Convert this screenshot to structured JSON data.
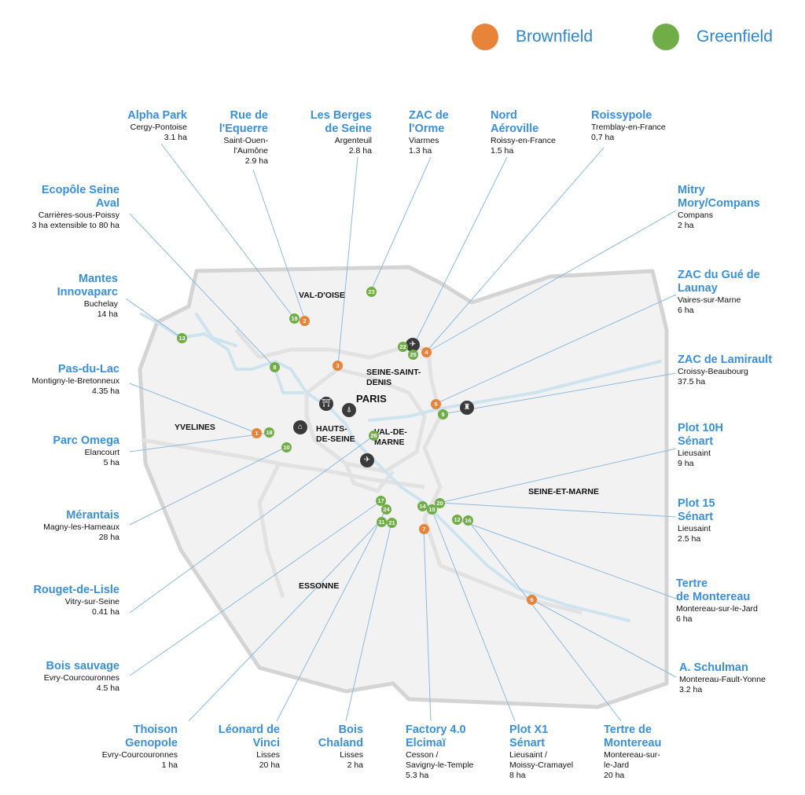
{
  "legend": [
    {
      "label": "Brownfield",
      "color": "#e8833a"
    },
    {
      "label": "Greenfield",
      "color": "#70ad47"
    }
  ],
  "colors": {
    "brownfield": "#e8833a",
    "greenfield": "#70ad47",
    "label": "#3b8fd6",
    "leader": "#7fb2dc",
    "region_fill": "#f0f0f0",
    "region_outline": "#d3d3d3",
    "river": "#c9e3ee"
  },
  "regions": [
    {
      "id": "val-doise",
      "text": "VAL-D'OISE"
    },
    {
      "id": "seine-saint-denis",
      "text": "SEINE-SAINT-\nDENIS"
    },
    {
      "id": "paris",
      "text": "PARIS"
    },
    {
      "id": "yvelines",
      "text": "YVELINES"
    },
    {
      "id": "hauts-de-seine",
      "text": "HAUTS-\nDE-SEINE"
    },
    {
      "id": "val-de-marne",
      "text": "VAL-DE-\nMARNE"
    },
    {
      "id": "seine-et-marne",
      "text": "SEINE-ET-MARNE"
    },
    {
      "id": "essonne",
      "text": "ESSONNE"
    }
  ],
  "markers": [
    {
      "number": "1",
      "type": "brownfield"
    },
    {
      "number": "2",
      "type": "brownfield"
    },
    {
      "number": "3",
      "type": "brownfield"
    },
    {
      "number": "4",
      "type": "brownfield"
    },
    {
      "number": "5",
      "type": "brownfield"
    },
    {
      "number": "6",
      "type": "brownfield"
    },
    {
      "number": "7",
      "type": "brownfield"
    },
    {
      "number": "8",
      "type": "greenfield"
    },
    {
      "number": "9",
      "type": "greenfield"
    },
    {
      "number": "10",
      "type": "greenfield"
    },
    {
      "number": "11",
      "type": "greenfield"
    },
    {
      "number": "12",
      "type": "greenfield"
    },
    {
      "number": "13",
      "type": "greenfield"
    },
    {
      "number": "14",
      "type": "greenfield"
    },
    {
      "number": "15",
      "type": "greenfield"
    },
    {
      "number": "16",
      "type": "greenfield"
    },
    {
      "number": "17",
      "type": "greenfield"
    },
    {
      "number": "18",
      "type": "greenfield"
    },
    {
      "number": "19",
      "type": "greenfield"
    },
    {
      "number": "20",
      "type": "greenfield"
    },
    {
      "number": "21",
      "type": "greenfield"
    },
    {
      "number": "22",
      "type": "greenfield"
    },
    {
      "number": "23",
      "type": "greenfield"
    },
    {
      "number": "24",
      "type": "greenfield"
    },
    {
      "number": "25",
      "type": "greenfield"
    },
    {
      "number": "26",
      "type": "greenfield"
    }
  ],
  "landmarks": [
    {
      "icon": "arc-de-triomphe-icon",
      "glyph": "⛩"
    },
    {
      "icon": "eiffel-tower-icon",
      "glyph": "⍋"
    },
    {
      "icon": "palace-icon",
      "glyph": "⌂"
    },
    {
      "icon": "airport-north-icon",
      "glyph": "✈"
    },
    {
      "icon": "airport-south-icon",
      "glyph": "✈"
    },
    {
      "icon": "castle-icon",
      "glyph": "♜"
    }
  ],
  "sites": [
    {
      "id": "alpha-park",
      "name": "Alpha Park",
      "location": "Cergy-Pontoise",
      "area": "3.1 ha"
    },
    {
      "id": "rue-equerre",
      "name": "Rue de\nl'Equerre",
      "location": "Saint-Ouen-\nl'Aumône",
      "area": "2.9 ha"
    },
    {
      "id": "berges-seine",
      "name": "Les Berges\nde Seine",
      "location": "Argenteuil",
      "area": "2.8 ha"
    },
    {
      "id": "zac-orme",
      "name": "ZAC de\nl'Orme",
      "location": "Viarmes",
      "area": "1.3 ha"
    },
    {
      "id": "nord-aeroville",
      "name": "Nord\nAéroville",
      "location": "Roissy-en-France",
      "area": "1.5 ha"
    },
    {
      "id": "roissypole",
      "name": "Roissypole",
      "location": "Tremblay-en-France",
      "area": "0,7 ha"
    },
    {
      "id": "ecopole",
      "name": "Ecopôle Seine\nAval",
      "location": "Carrières-sous-Poissy",
      "area": "3 ha extensible  to 80 ha"
    },
    {
      "id": "mitry",
      "name": "Mitry\nMory/Compans",
      "location": "Compans",
      "area": "2 ha"
    },
    {
      "id": "mantes",
      "name": "Mantes\nInnovaparc",
      "location": "Buchelay",
      "area": "14 ha"
    },
    {
      "id": "gue-launay",
      "name": "ZAC du Gué de\nLaunay",
      "location": "Vaires-sur-Marne",
      "area": "6 ha"
    },
    {
      "id": "pas-du-lac",
      "name": "Pas-du-Lac",
      "location": "Montigny-le-Bretonneux",
      "area": "4.35  ha"
    },
    {
      "id": "lamirault",
      "name": "ZAC de Lamirault",
      "location": "Croissy-Beaubourg",
      "area": "37.5  ha"
    },
    {
      "id": "parc-omega",
      "name": "Parc Omega",
      "location": "Elancourt",
      "area": "5 ha"
    },
    {
      "id": "plot-10h",
      "name": "Plot 10H\nSénart",
      "location": "Lieusaint",
      "area": "9 ha"
    },
    {
      "id": "merantais",
      "name": "Mérantais",
      "location": "Magny-les-Hameaux",
      "area": "28 ha"
    },
    {
      "id": "plot-15",
      "name": "Plot 15\nSénart",
      "location": "Lieusaint",
      "area": "2.5 ha"
    },
    {
      "id": "rouget",
      "name": "Rouget-de-Lisle",
      "location": "Vitry-sur-Seine",
      "area": "0.41  ha"
    },
    {
      "id": "tertre-1",
      "name": "Tertre\nde Montereau",
      "location": "Montereau-sur-le-Jard",
      "area": "6 ha"
    },
    {
      "id": "bois-sauvage",
      "name": "Bois sauvage",
      "location": "Evry-Courcouronnes",
      "area": "4.5 ha"
    },
    {
      "id": "schulman",
      "name": "A. Schulman",
      "location": "Montereau-Fault-Yonne",
      "area": "3.2 ha"
    },
    {
      "id": "thoison",
      "name": "Thoison\nGenopole",
      "location": "Evry-Courcouronnes",
      "area": "1 ha"
    },
    {
      "id": "leonard",
      "name": "Léonard de\nVinci",
      "location": "Lisses",
      "area": "20 ha"
    },
    {
      "id": "bois-chaland",
      "name": "Bois\nChaland",
      "location": "Lisses",
      "area": "2 ha"
    },
    {
      "id": "factory",
      "name": "Factory 4.0\nElcimaï",
      "location": "Cesson /\nSavigny-le-Temple",
      "area": "5.3 ha"
    },
    {
      "id": "plot-x1",
      "name": "Plot X1\nSénart",
      "location": "Lieusaint  /\nMoissy-Cramayel",
      "area": "8 ha"
    },
    {
      "id": "tertre-2",
      "name": "Tertre de\nMontereau",
      "location": "Montereau-sur-\nle-Jard",
      "area": "20 ha"
    }
  ]
}
